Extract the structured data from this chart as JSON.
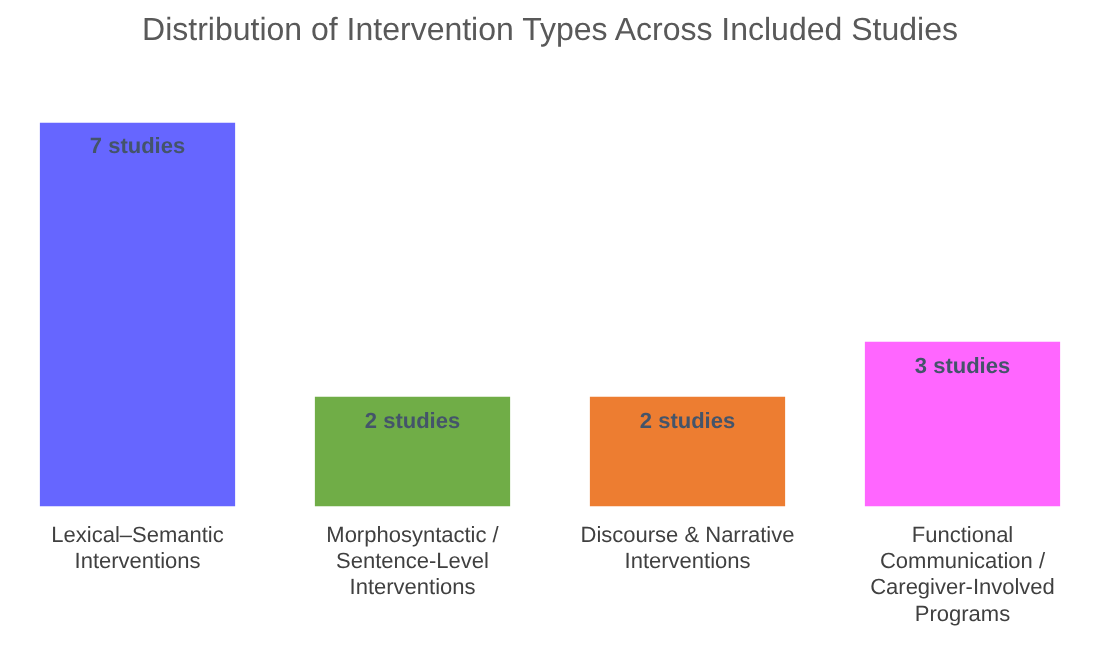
{
  "chart_data": {
    "type": "bar",
    "title": "Distribution of Intervention Types Across Included Studies",
    "categories": [
      "Lexical–Semantic Interventions",
      "Morphosyntactic / Sentence-Level Interventions",
      "Discourse & Narrative Interventions",
      "Functional Communication / Caregiver-Involved Programs"
    ],
    "values": [
      7,
      2,
      2,
      3
    ],
    "colors": [
      "#6666ff",
      "#70ad47",
      "#ed7d31",
      "#ff66ff"
    ],
    "value_labels": [
      "7 studies",
      "2 studies",
      "2 studies",
      "3 studies"
    ],
    "grid": false,
    "legend": false
  }
}
